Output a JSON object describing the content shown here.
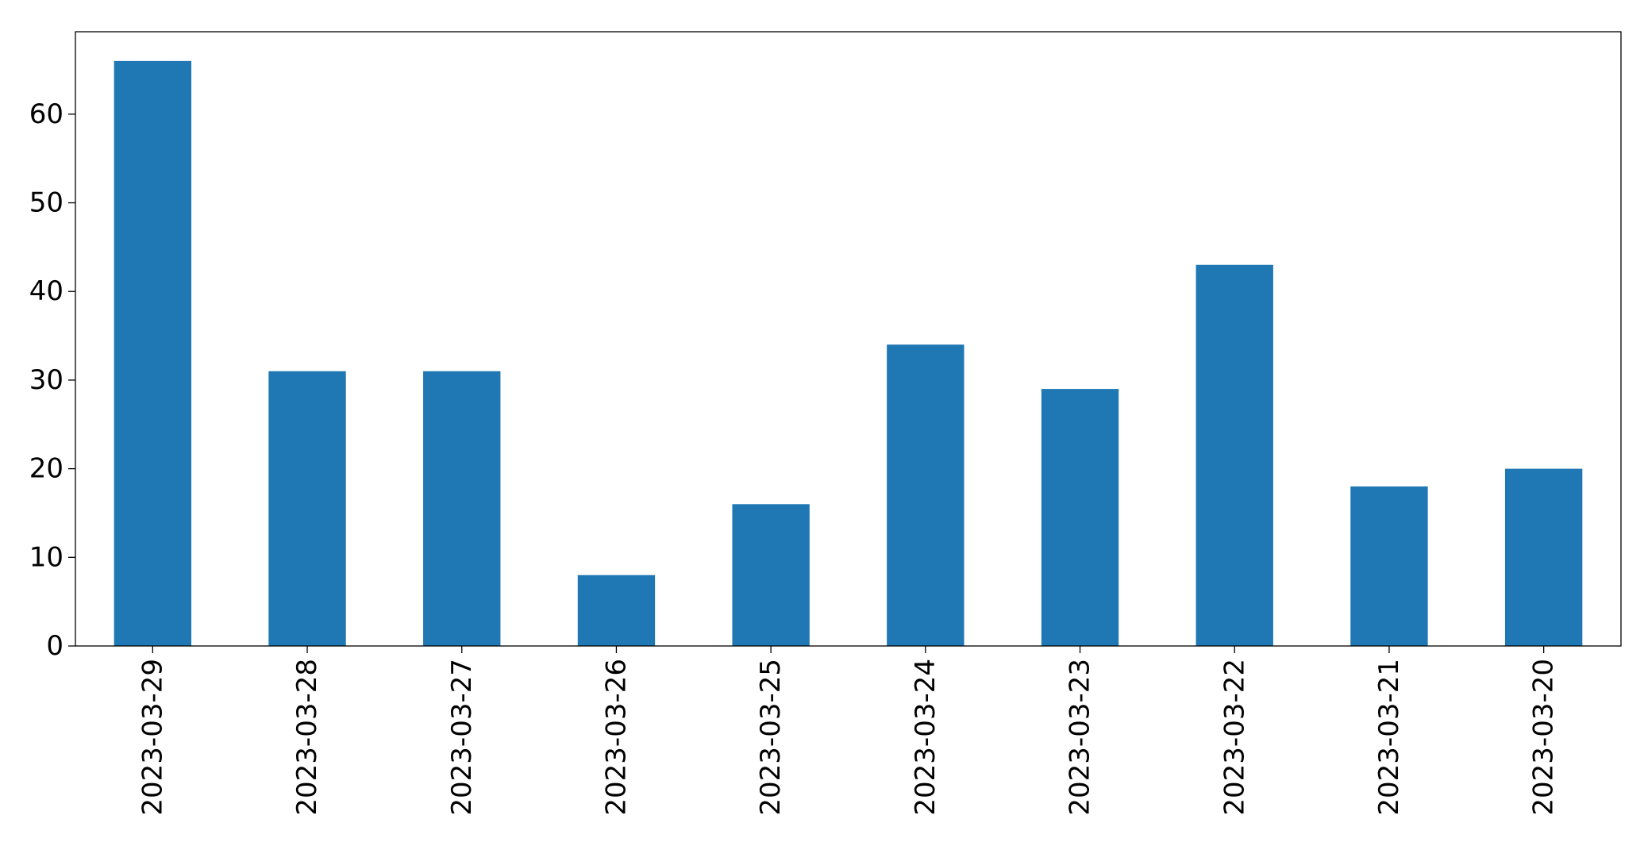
{
  "chart_data": {
    "type": "bar",
    "title": "",
    "xlabel": "",
    "ylabel": "",
    "categories": [
      "2023-03-29",
      "2023-03-28",
      "2023-03-27",
      "2023-03-26",
      "2023-03-25",
      "2023-03-24",
      "2023-03-23",
      "2023-03-22",
      "2023-03-21",
      "2023-03-20"
    ],
    "values": [
      66,
      31,
      31,
      8,
      16,
      34,
      29,
      43,
      18,
      20
    ],
    "ylim": [
      0,
      69.3
    ],
    "yticks": [
      0,
      10,
      20,
      30,
      40,
      50,
      60
    ],
    "ytick_labels": [
      "0",
      "10",
      "20",
      "30",
      "40",
      "50",
      "60"
    ],
    "bar_color": "#1f77b4",
    "grid": false,
    "legend": false
  }
}
